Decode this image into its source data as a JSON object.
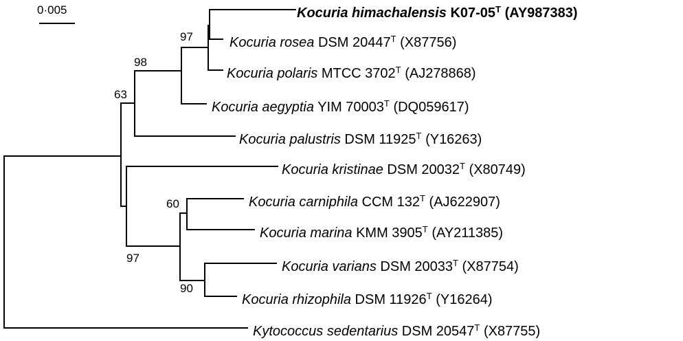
{
  "scale_bar": {
    "label": "0·005"
  },
  "bootstrap": {
    "b97a": "97",
    "b98": "98",
    "b63": "63",
    "b60": "60",
    "b97b": "97",
    "b90": "90"
  },
  "taxa": [
    {
      "genus_species": "Kocuria himachalensis",
      "strain": "K07-05",
      "type_mark": "T",
      "accession": "(AY987383)",
      "bold": true
    },
    {
      "genus_species": "Kocuria rosea",
      "strain": "DSM 20447",
      "type_mark": "T",
      "accession": "(X87756)",
      "bold": false
    },
    {
      "genus_species": "Kocuria polaris",
      "strain": "MTCC 3702",
      "type_mark": "T",
      "accession": "(AJ278868)",
      "bold": false
    },
    {
      "genus_species": "Kocuria aegyptia",
      "strain": "YIM 70003",
      "type_mark": "T",
      "accession": "(DQ059617)",
      "bold": false
    },
    {
      "genus_species": "Kocuria palustris",
      "strain": "DSM 11925",
      "type_mark": "T",
      "accession": "(Y16263)",
      "bold": false
    },
    {
      "genus_species": "Kocuria kristinae",
      "strain": "DSM 20032",
      "type_mark": "T",
      "accession": "(X80749)",
      "bold": false
    },
    {
      "genus_species": "Kocuria carniphila",
      "strain": "CCM 132",
      "type_mark": "T",
      "accession": "(AJ622907)",
      "bold": false
    },
    {
      "genus_species": "Kocuria marina",
      "strain": "KMM 3905",
      "type_mark": "T",
      "accession": "(AY211385)",
      "bold": false
    },
    {
      "genus_species": "Kocuria varians",
      "strain": "DSM 20033",
      "type_mark": "T",
      "accession": "(X87754)",
      "bold": false
    },
    {
      "genus_species": "Kocuria rhizophila",
      "strain": "DSM 11926",
      "type_mark": "T",
      "accession": "(Y16264)",
      "bold": false
    },
    {
      "genus_species": "Kytococcus sedentarius",
      "strain": "DSM 20547",
      "type_mark": "T",
      "accession": "(X87755)",
      "bold": false
    }
  ]
}
